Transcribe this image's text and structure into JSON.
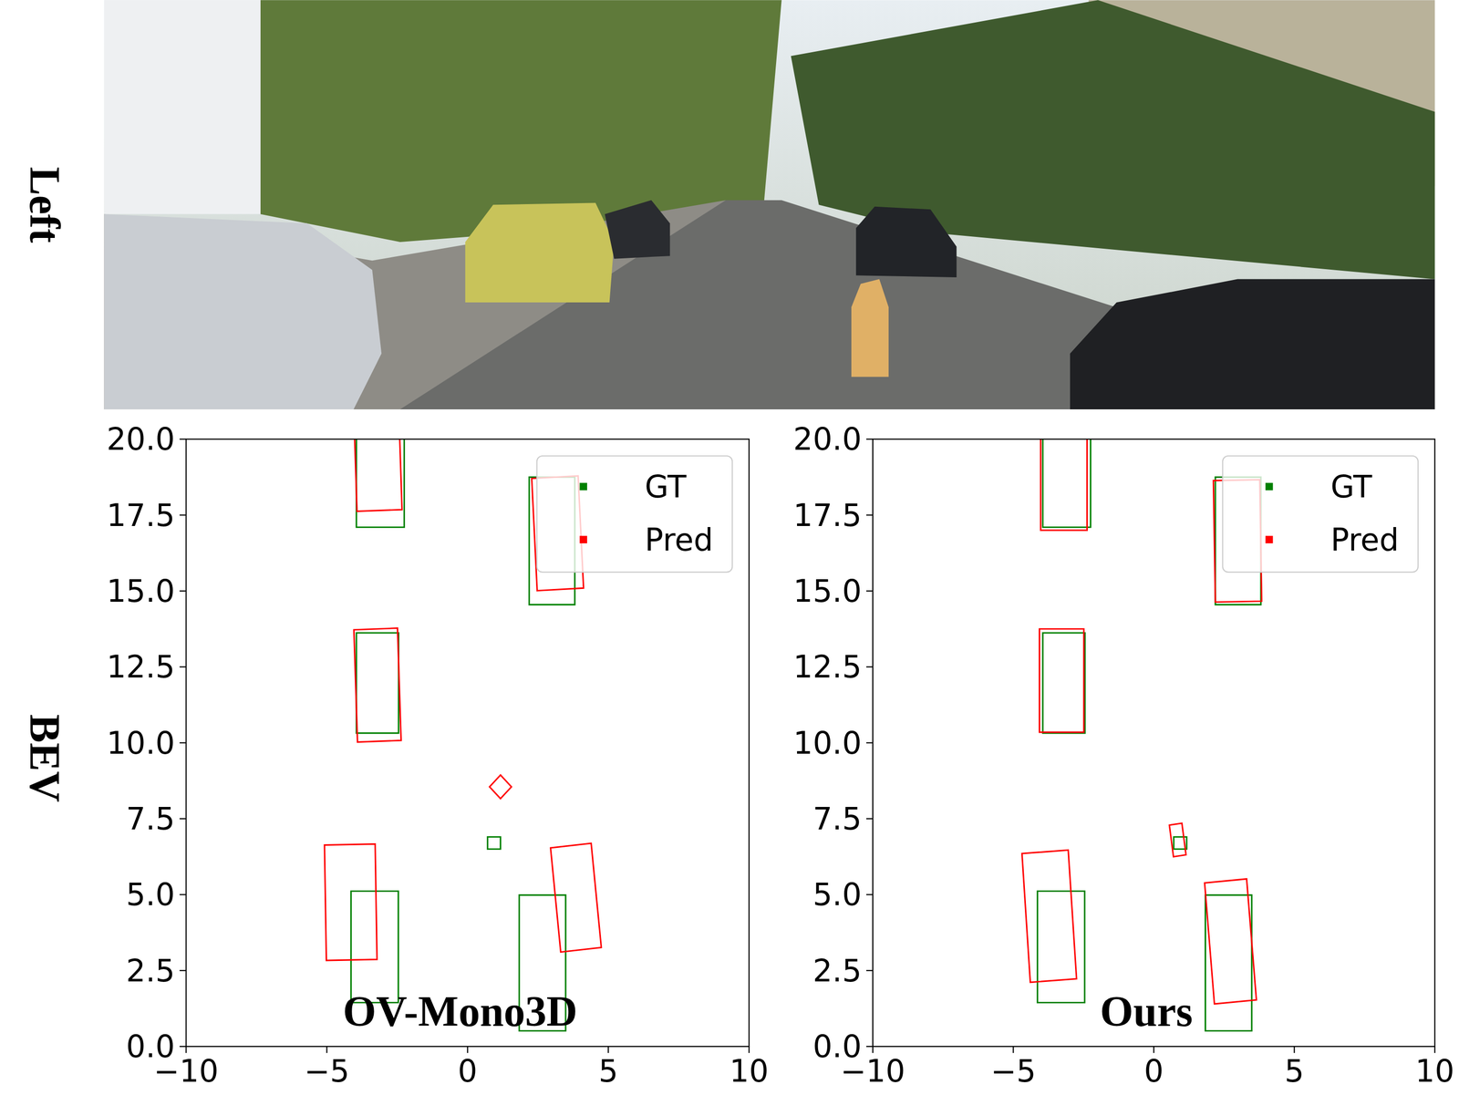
{
  "row_labels": [
    "Left",
    "BEV"
  ],
  "chart_data": [
    {
      "type": "bev_boxes",
      "title": "OV-Mono3D",
      "legend": "upper right",
      "xlim": [
        -10,
        10
      ],
      "ylim": [
        0,
        20
      ],
      "xticks": [
        {
          "value": -10,
          "label": "−10"
        },
        {
          "value": -5,
          "label": "−5"
        },
        0,
        5,
        10
      ],
      "yticks": [
        {
          "value": 0,
          "label": "0.0"
        },
        {
          "value": 2.5,
          "label": "2.5"
        },
        {
          "value": 5,
          "label": "5.0"
        },
        {
          "value": 7.5,
          "label": "7.5"
        },
        {
          "value": 10,
          "label": "10.0"
        },
        {
          "value": 12.5,
          "label": "12.5"
        },
        {
          "value": 15,
          "label": "15.0"
        },
        {
          "value": 17.5,
          "label": "17.5"
        },
        {
          "value": 20,
          "label": "20.0"
        }
      ],
      "series": [
        {
          "name": "GT",
          "color": "#008000",
          "marker": "square",
          "boxes": [
            {
              "x": -3.1,
              "z": 19.2,
              "w": 1.7,
              "l": 4.2,
              "yaw": 0
            },
            {
              "x": 3.0,
              "z": 16.65,
              "w": 1.62,
              "l": 4.2,
              "yaw": 0
            },
            {
              "x": -3.2,
              "z": 11.97,
              "w": 1.5,
              "l": 3.3,
              "yaw": 0
            },
            {
              "x": 0.94,
              "z": 6.7,
              "w": 0.46,
              "l": 0.4,
              "yaw": 0
            },
            {
              "x": -3.3,
              "z": 3.28,
              "w": 1.68,
              "l": 3.67,
              "yaw": 0
            },
            {
              "x": 2.66,
              "z": 2.75,
              "w": 1.65,
              "l": 4.47,
              "yaw": 0
            }
          ]
        },
        {
          "name": "Pred",
          "color": "#ff0000",
          "marker": "square",
          "boxes": [
            {
              "x": -3.2,
              "z": 19.7,
              "w": 1.6,
              "l": 4.1,
              "yaw": 2
            },
            {
              "x": 3.2,
              "z": 16.9,
              "w": 1.65,
              "l": 3.7,
              "yaw": 3
            },
            {
              "x": -3.2,
              "z": 11.9,
              "w": 1.55,
              "l": 3.7,
              "yaw": 2
            },
            {
              "x": 1.17,
              "z": 8.55,
              "w": 0.55,
              "l": 0.55,
              "yaw": 45
            },
            {
              "x": -4.15,
              "z": 4.75,
              "w": 1.8,
              "l": 3.8,
              "yaw": 1
            },
            {
              "x": 3.85,
              "z": 4.9,
              "w": 1.45,
              "l": 3.45,
              "yaw": 6
            }
          ]
        }
      ]
    },
    {
      "type": "bev_boxes",
      "title": "Ours",
      "legend": "upper right",
      "xlim": [
        -10,
        10
      ],
      "ylim": [
        0,
        20
      ],
      "xticks": [
        {
          "value": -10,
          "label": "−10"
        },
        {
          "value": -5,
          "label": "−5"
        },
        0,
        5,
        10
      ],
      "yticks": [
        {
          "value": 0,
          "label": "0.0"
        },
        {
          "value": 2.5,
          "label": "2.5"
        },
        {
          "value": 5,
          "label": "5.0"
        },
        {
          "value": 7.5,
          "label": "7.5"
        },
        {
          "value": 10,
          "label": "10.0"
        },
        {
          "value": 12.5,
          "label": "12.5"
        },
        {
          "value": 15,
          "label": "15.0"
        },
        {
          "value": 17.5,
          "label": "17.5"
        },
        {
          "value": 20,
          "label": "20.0"
        }
      ],
      "series": [
        {
          "name": "GT",
          "color": "#008000",
          "marker": "square",
          "boxes": [
            {
              "x": -3.1,
              "z": 19.2,
              "w": 1.7,
              "l": 4.2,
              "yaw": 0
            },
            {
              "x": 3.0,
              "z": 16.65,
              "w": 1.62,
              "l": 4.2,
              "yaw": 0
            },
            {
              "x": -3.2,
              "z": 11.97,
              "w": 1.5,
              "l": 3.3,
              "yaw": 0
            },
            {
              "x": 0.94,
              "z": 6.7,
              "w": 0.46,
              "l": 0.4,
              "yaw": 0
            },
            {
              "x": -3.3,
              "z": 3.28,
              "w": 1.68,
              "l": 3.67,
              "yaw": 0
            },
            {
              "x": 2.66,
              "z": 2.75,
              "w": 1.65,
              "l": 4.47,
              "yaw": 0
            }
          ]
        },
        {
          "name": "Pred",
          "color": "#ff0000",
          "marker": "square",
          "boxes": [
            {
              "x": -3.2,
              "z": 19.1,
              "w": 1.65,
              "l": 4.2,
              "yaw": 0
            },
            {
              "x": 2.98,
              "z": 16.65,
              "w": 1.65,
              "l": 4.0,
              "yaw": 1
            },
            {
              "x": -3.28,
              "z": 12.05,
              "w": 1.58,
              "l": 3.4,
              "yaw": 0
            },
            {
              "x": 0.85,
              "z": 6.8,
              "w": 0.45,
              "l": 1.05,
              "yaw": 8
            },
            {
              "x": -3.72,
              "z": 4.29,
              "w": 1.65,
              "l": 4.25,
              "yaw": 4
            },
            {
              "x": 2.73,
              "z": 3.46,
              "w": 1.5,
              "l": 4.0,
              "yaw": 5
            }
          ]
        }
      ]
    }
  ]
}
